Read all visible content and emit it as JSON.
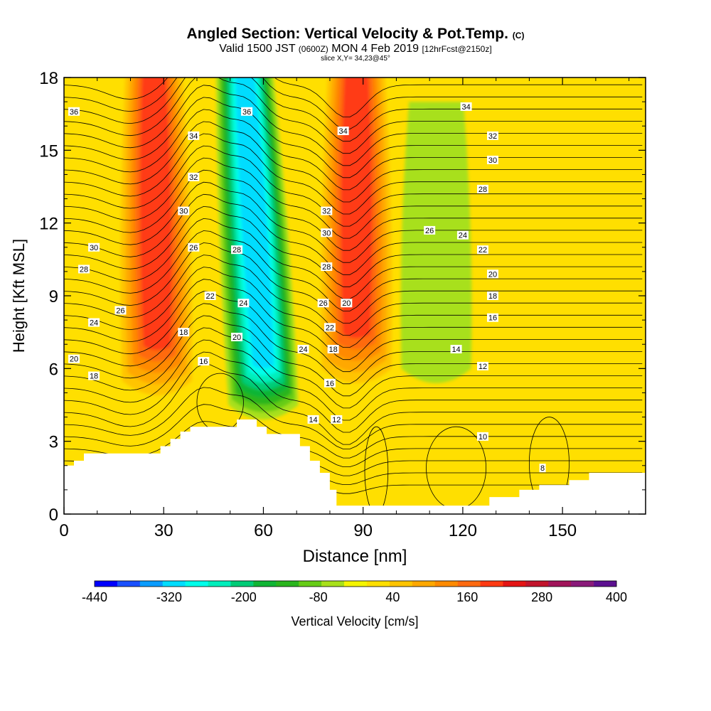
{
  "title": "Angled Section: Vertical Velocity & Pot.Temp.",
  "title_units": "(C)",
  "subtitle_main": "Valid 1500 JST",
  "subtitle_utc": "(0600Z)",
  "subtitle_date": "MON 4 Feb 2019",
  "subtitle_fcst": "[12hrFcst@2150z]",
  "slice_info": "slice X,Y= 34,23@45°",
  "chart_data": {
    "type": "heatmap",
    "description": "Vertical cross-section: filled contours of vertical velocity, black contour lines of potential temperature",
    "xlabel": "Distance [nm]",
    "ylabel": "Height [Kft MSL]",
    "xlim": [
      0,
      175
    ],
    "ylim": [
      0,
      18
    ],
    "x_ticks": [
      "0",
      "30",
      "60",
      "90",
      "120",
      "150"
    ],
    "y_ticks": [
      "0",
      "3",
      "6",
      "9",
      "12",
      "15",
      "18"
    ],
    "colorbar": {
      "label": "Vertical Velocity [cm/s]",
      "range": [
        -440,
        400
      ],
      "tick_labels": [
        "-440",
        "-320",
        "-200",
        "-80",
        "40",
        "160",
        "280",
        "400"
      ],
      "colors": [
        "#0000ff",
        "#1a50ff",
        "#0a9cff",
        "#00ddff",
        "#00ffea",
        "#00eebb",
        "#00cc77",
        "#10b535",
        "#2ab51d",
        "#66cc16",
        "#a8e01a",
        "#f5f500",
        "#ffdf00",
        "#ffc400",
        "#ffa800",
        "#ff8a00",
        "#ff6a10",
        "#ff3a12",
        "#e41414",
        "#c2142c",
        "#a1145a",
        "#8a1a7a",
        "#5c1090"
      ]
    },
    "velocity_features": [
      {
        "kind": "updraft",
        "x_bottom": 28,
        "x_top": 27,
        "h_bottom": 5.5,
        "h_top": 18,
        "max": 200
      },
      {
        "kind": "downdraft",
        "x_bottom": 60,
        "x_top": 54,
        "h_bottom": 4.5,
        "h_top": 18,
        "min": -320
      },
      {
        "kind": "updraft",
        "x_bottom": 88,
        "x_top": 88,
        "h_bottom": 6,
        "h_top": 18,
        "max": 200
      },
      {
        "kind": "weak_downdraft",
        "x_bottom": 112,
        "x_top": 112,
        "h_bottom": 6,
        "h_top": 16,
        "min": -60
      }
    ],
    "theta_contour_labels": [
      {
        "text": "36",
        "x": 3,
        "y": 16.6
      },
      {
        "text": "34",
        "x": 39,
        "y": 15.6
      },
      {
        "text": "36",
        "x": 55,
        "y": 16.6
      },
      {
        "text": "34",
        "x": 84,
        "y": 15.8
      },
      {
        "text": "34",
        "x": 121,
        "y": 16.8
      },
      {
        "text": "32",
        "x": 129,
        "y": 15.6
      },
      {
        "text": "30",
        "x": 129,
        "y": 14.6
      },
      {
        "text": "28",
        "x": 126,
        "y": 13.4
      },
      {
        "text": "32",
        "x": 39,
        "y": 13.9
      },
      {
        "text": "30",
        "x": 36,
        "y": 12.5
      },
      {
        "text": "32",
        "x": 79,
        "y": 12.5
      },
      {
        "text": "30",
        "x": 79,
        "y": 11.6
      },
      {
        "text": "26",
        "x": 110,
        "y": 11.7
      },
      {
        "text": "24",
        "x": 120,
        "y": 11.5
      },
      {
        "text": "30",
        "x": 9,
        "y": 11
      },
      {
        "text": "28",
        "x": 6,
        "y": 10.1
      },
      {
        "text": "26",
        "x": 39,
        "y": 11
      },
      {
        "text": "28",
        "x": 52,
        "y": 10.9
      },
      {
        "text": "28",
        "x": 79,
        "y": 10.2
      },
      {
        "text": "22",
        "x": 126,
        "y": 10.9
      },
      {
        "text": "20",
        "x": 129,
        "y": 9.9
      },
      {
        "text": "18",
        "x": 129,
        "y": 9
      },
      {
        "text": "22",
        "x": 44,
        "y": 9
      },
      {
        "text": "24",
        "x": 54,
        "y": 8.7
      },
      {
        "text": "26",
        "x": 78,
        "y": 8.7
      },
      {
        "text": "20",
        "x": 85,
        "y": 8.7
      },
      {
        "text": "26",
        "x": 17,
        "y": 8.4
      },
      {
        "text": "24",
        "x": 9,
        "y": 7.9
      },
      {
        "text": "16",
        "x": 129,
        "y": 8.1
      },
      {
        "text": "22",
        "x": 80,
        "y": 7.7
      },
      {
        "text": "18",
        "x": 36,
        "y": 7.5
      },
      {
        "text": "20",
        "x": 52,
        "y": 7.3
      },
      {
        "text": "18",
        "x": 81,
        "y": 6.8
      },
      {
        "text": "24",
        "x": 72,
        "y": 6.8
      },
      {
        "text": "14",
        "x": 118,
        "y": 6.8
      },
      {
        "text": "16",
        "x": 42,
        "y": 6.3
      },
      {
        "text": "20",
        "x": 3,
        "y": 6.4
      },
      {
        "text": "12",
        "x": 126,
        "y": 6.1
      },
      {
        "text": "18",
        "x": 9,
        "y": 5.7
      },
      {
        "text": "16",
        "x": 80,
        "y": 5.4
      },
      {
        "text": "14",
        "x": 75,
        "y": 3.9
      },
      {
        "text": "12",
        "x": 82,
        "y": 3.9
      },
      {
        "text": "10",
        "x": 126,
        "y": 3.2
      },
      {
        "text": "8",
        "x": 144,
        "y": 1.9
      }
    ],
    "terrain_height_kft": [
      [
        0,
        2.0
      ],
      [
        3,
        2.0
      ],
      [
        3,
        2.2
      ],
      [
        6,
        2.2
      ],
      [
        6,
        2.5
      ],
      [
        29,
        2.5
      ],
      [
        29,
        2.8
      ],
      [
        32,
        2.8
      ],
      [
        32,
        3.1
      ],
      [
        35,
        3.1
      ],
      [
        35,
        3.4
      ],
      [
        38,
        3.4
      ],
      [
        38,
        3.6
      ],
      [
        52,
        3.6
      ],
      [
        52,
        3.9
      ],
      [
        58,
        3.9
      ],
      [
        58,
        3.6
      ],
      [
        61,
        3.6
      ],
      [
        61,
        3.3
      ],
      [
        71,
        3.3
      ],
      [
        71,
        2.8
      ],
      [
        74,
        2.8
      ],
      [
        74,
        2.2
      ],
      [
        77,
        2.2
      ],
      [
        77,
        1.7
      ],
      [
        80,
        1.7
      ],
      [
        80,
        1.0
      ],
      [
        82,
        1.0
      ],
      [
        82,
        0.35
      ],
      [
        128,
        0.35
      ],
      [
        128,
        0.7
      ],
      [
        137,
        0.7
      ],
      [
        137,
        1.0
      ],
      [
        143,
        1.0
      ],
      [
        143,
        1.2
      ],
      [
        152,
        1.2
      ],
      [
        152,
        1.4
      ],
      [
        158,
        1.4
      ],
      [
        158,
        1.7
      ],
      [
        175,
        1.7
      ]
    ]
  }
}
